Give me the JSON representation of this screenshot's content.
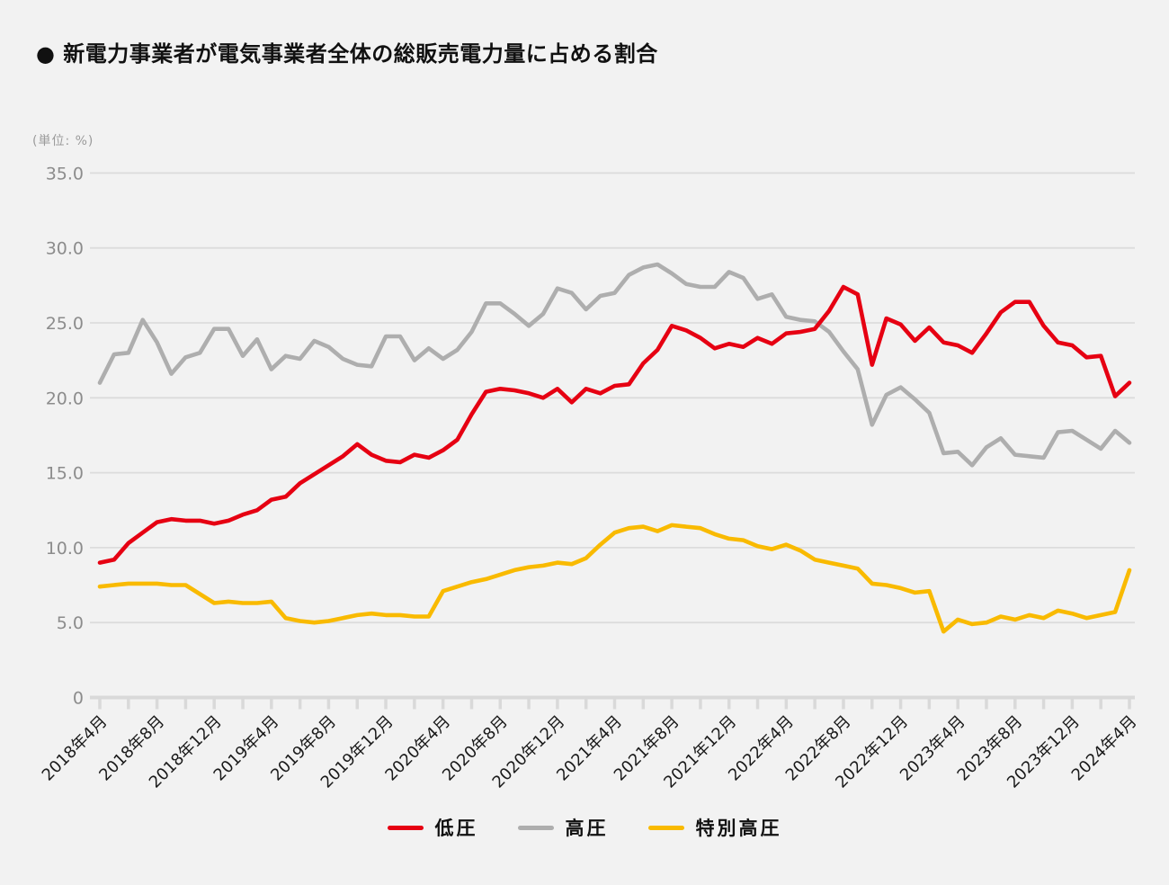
{
  "title": "● 新電力事業者が電気事業者全体の総販売電力量に占める割合",
  "unit_label": "(単位: %)",
  "colors": {
    "background": "#f2f2f2",
    "grid": "#dcdcdc",
    "baseline": "#d9d9d9",
    "y_tick_text": "#8c8c8c",
    "x_tick_text": "#1a1a1a"
  },
  "chart_data": {
    "type": "line",
    "title": "新電力事業者が電気事業者全体の総販売電力量に占める割合",
    "xlabel": "",
    "ylabel": "(単位: %)",
    "x_unit": "month",
    "x_range": [
      "2018年4月",
      "2024年4月"
    ],
    "x_points": 73,
    "x_tick_every_months": 4,
    "x_tick_labels": [
      "2018年4月",
      "2018年8月",
      "2018年12月",
      "2019年4月",
      "2019年8月",
      "2019年12月",
      "2020年4月",
      "2020年8月",
      "2020年12月",
      "2021年4月",
      "2021年8月",
      "2021年12月",
      "2022年4月",
      "2022年8月",
      "2022年12月",
      "2023年4月",
      "2023年8月",
      "2023年12月",
      "2024年4月"
    ],
    "ylim": [
      0,
      35
    ],
    "y_ticks": [
      0,
      5,
      10,
      15,
      20,
      25,
      30,
      35
    ],
    "y_tick_labels": [
      "0",
      "5.0",
      "10.0",
      "15.0",
      "20.0",
      "25.0",
      "30.0",
      "35.0"
    ],
    "grid": "horizontal",
    "legend_position": "bottom-center",
    "series": [
      {
        "name": "低圧",
        "key": "low-voltage",
        "color": "#e60012",
        "values": [
          9.0,
          9.2,
          10.3,
          11.0,
          11.7,
          11.9,
          11.8,
          11.8,
          11.6,
          11.8,
          12.2,
          12.5,
          13.2,
          13.4,
          14.3,
          14.9,
          15.5,
          16.1,
          16.9,
          16.2,
          15.8,
          15.7,
          16.2,
          16.0,
          16.5,
          17.2,
          18.9,
          20.4,
          20.6,
          20.5,
          20.3,
          20.0,
          20.6,
          19.7,
          20.6,
          20.3,
          20.8,
          20.9,
          22.3,
          23.2,
          24.8,
          24.5,
          24.0,
          23.3,
          23.6,
          23.4,
          24.0,
          23.6,
          24.3,
          24.4,
          24.6,
          25.8,
          27.4,
          26.9,
          22.2,
          25.3,
          24.9,
          23.8,
          24.7,
          23.7,
          23.5,
          23.0,
          24.3,
          25.7,
          26.4,
          26.4,
          24.8,
          23.7,
          23.5,
          22.7,
          22.8,
          20.1,
          21.0
        ]
      },
      {
        "name": "高圧",
        "key": "high-voltage",
        "color": "#aeaeae",
        "values": [
          21.0,
          22.9,
          23.0,
          25.2,
          23.7,
          21.6,
          22.7,
          23.0,
          24.6,
          24.6,
          22.8,
          23.9,
          21.9,
          22.8,
          22.6,
          23.8,
          23.4,
          22.6,
          22.2,
          22.1,
          24.1,
          24.1,
          22.5,
          23.3,
          22.6,
          23.2,
          24.4,
          26.3,
          26.3,
          25.6,
          24.8,
          25.6,
          27.3,
          27.0,
          25.9,
          26.8,
          27.0,
          28.2,
          28.7,
          28.9,
          28.3,
          27.6,
          27.4,
          27.4,
          28.4,
          28.0,
          26.6,
          26.9,
          25.4,
          25.2,
          25.1,
          24.4,
          23.1,
          21.9,
          18.2,
          20.2,
          20.7,
          19.9,
          19.0,
          16.3,
          16.4,
          15.5,
          16.7,
          17.3,
          16.2,
          16.1,
          16.0,
          17.7,
          17.8,
          17.2,
          16.6,
          17.8,
          17.0
        ]
      },
      {
        "name": "特別高圧",
        "key": "extra-high-voltage",
        "color": "#f9ba00",
        "values": [
          7.4,
          7.5,
          7.6,
          7.6,
          7.6,
          7.5,
          7.5,
          6.9,
          6.3,
          6.4,
          6.3,
          6.3,
          6.4,
          5.3,
          5.1,
          5.0,
          5.1,
          5.3,
          5.5,
          5.6,
          5.5,
          5.5,
          5.4,
          5.4,
          7.1,
          7.4,
          7.7,
          7.9,
          8.2,
          8.5,
          8.7,
          8.8,
          9.0,
          8.9,
          9.3,
          10.2,
          11.0,
          11.3,
          11.4,
          11.1,
          11.5,
          11.4,
          11.3,
          10.9,
          10.6,
          10.5,
          10.1,
          9.9,
          10.2,
          9.8,
          9.2,
          9.0,
          8.8,
          8.6,
          7.6,
          7.5,
          7.3,
          7.0,
          7.1,
          4.4,
          5.2,
          4.9,
          5.0,
          5.4,
          5.2,
          5.5,
          5.3,
          5.8,
          5.6,
          5.3,
          5.5,
          5.7,
          8.5
        ]
      }
    ]
  }
}
